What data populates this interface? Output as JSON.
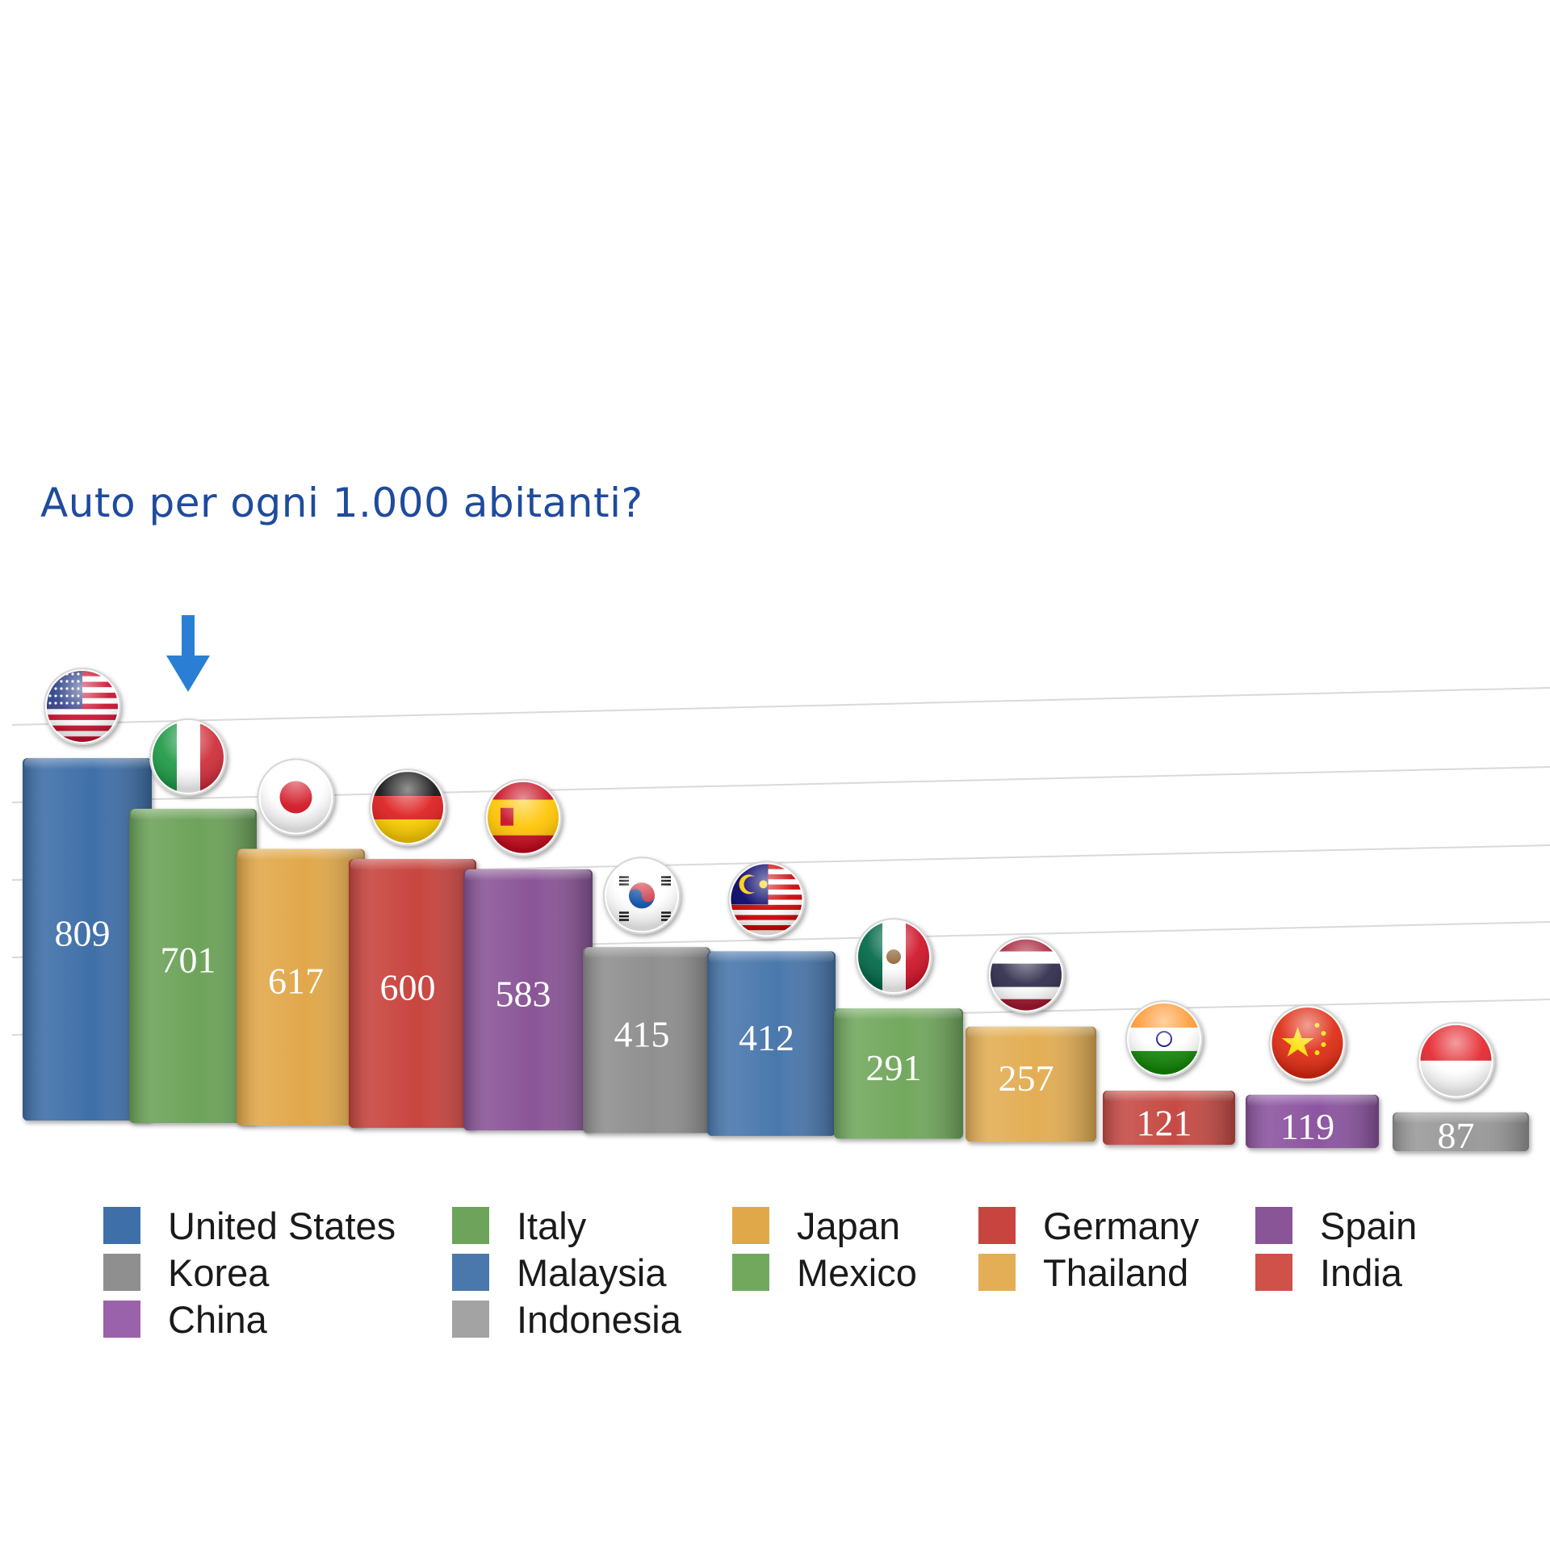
{
  "colors": {
    "title": "#1f4b9c",
    "arrow": "#2a7fd4",
    "gridline": "#d9d9d9",
    "value_label": "#ffffff"
  },
  "chart_data": {
    "type": "bar",
    "title": "Auto per ogni 1.000 abitanti?",
    "xlabel": "",
    "ylabel": "",
    "ylim": [
      0,
      1000
    ],
    "grid": true,
    "legend_position": "bottom",
    "highlight": {
      "category": "Italy",
      "marker": "arrow-down"
    },
    "categories": [
      "United States",
      "Italy",
      "Japan",
      "Germany",
      "Spain",
      "Korea",
      "Malaysia",
      "Mexico",
      "Thailand",
      "India",
      "China",
      "Indonesia"
    ],
    "values": [
      809,
      701,
      617,
      600,
      583,
      415,
      412,
      291,
      257,
      121,
      119,
      87
    ],
    "value_labels": [
      "809",
      "701",
      "617",
      "600",
      "583",
      "415",
      "412",
      "291",
      "257",
      "121",
      "119",
      "87"
    ],
    "series_colors": [
      "#3f6fa8",
      "#6da35a",
      "#e1a84a",
      "#c8453f",
      "#8a5597",
      "#8f8f8f",
      "#4a78ad",
      "#72a85e",
      "#e3ae55",
      "#c64b46",
      "#8c55a0",
      "#9a9a9a"
    ],
    "flags": [
      "us-flag-icon",
      "italy-flag-icon",
      "japan-flag-icon",
      "germany-flag-icon",
      "spain-flag-icon",
      "korea-flag-icon",
      "malaysia-flag-icon",
      "mexico-flag-icon",
      "thailand-flag-icon",
      "india-flag-icon",
      "china-flag-icon",
      "indonesia-flag-icon"
    ],
    "legend": [
      {
        "label": "United States",
        "color": "#3f6fa8"
      },
      {
        "label": "Italy",
        "color": "#6da35a"
      },
      {
        "label": "Japan",
        "color": "#e1a84a"
      },
      {
        "label": "Germany",
        "color": "#c8453f"
      },
      {
        "label": "Spain",
        "color": "#8a5597"
      },
      {
        "label": "Korea",
        "color": "#8f8f8f"
      },
      {
        "label": "Malaysia",
        "color": "#4a78ad"
      },
      {
        "label": "Mexico",
        "color": "#72a85e"
      },
      {
        "label": "Thailand",
        "color": "#e3ae55"
      },
      {
        "label": "India",
        "color": "#d0504a"
      },
      {
        "label": "China",
        "color": "#9a62aa"
      },
      {
        "label": "Indonesia",
        "color": "#a3a3a3"
      }
    ]
  }
}
